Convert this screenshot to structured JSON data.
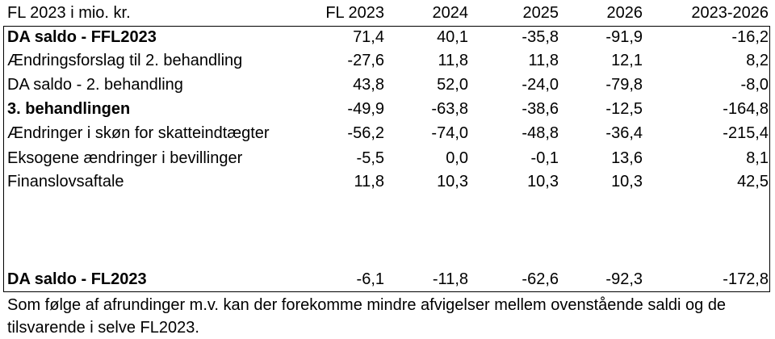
{
  "table": {
    "header": {
      "label": "FL 2023 i mio. kr.",
      "cols": [
        "FL 2023",
        "2024",
        "2025",
        "2026",
        "2023-2026"
      ]
    },
    "rows": [
      {
        "label": "DA saldo - FFL2023",
        "values": [
          "71,4",
          "40,1",
          "-35,8",
          "-91,9",
          "-16,2"
        ]
      },
      {
        "label": "Ændringsforslag til 2. behandling",
        "values": [
          "-27,6",
          "11,8",
          "11,8",
          "12,1",
          "8,2"
        ]
      },
      {
        "label": "DA saldo - 2. behandling",
        "values": [
          "43,8",
          "52,0",
          "-24,0",
          "-79,8",
          "-8,0"
        ]
      },
      {
        "label": "3. behandlingen",
        "values": [
          "-49,9",
          "-63,8",
          "-38,6",
          "-12,5",
          "-164,8"
        ]
      },
      {
        "label": "Ændringer i skøn for skatteindtægter",
        "values": [
          "-56,2",
          "-74,0",
          "-48,8",
          "-36,4",
          "-215,4"
        ]
      },
      {
        "label": "Eksogene ændringer i bevillinger",
        "values": [
          "-5,5",
          "0,0",
          "-0,1",
          "13,6",
          "8,1"
        ]
      },
      {
        "label": "Finanslovsaftale",
        "values": [
          "11,8",
          "10,3",
          "10,3",
          "10,3",
          "42,5"
        ]
      }
    ],
    "total": {
      "label": "DA saldo - FL2023",
      "values": [
        "-6,1",
        "-11,8",
        "-62,6",
        "-92,3",
        "-172,8"
      ]
    }
  },
  "footnote": "Som følge af afrundinger m.v. kan der forekomme mindre afvigelser mellem ovenstående saldi og de tilsvarende i selve FL2023."
}
